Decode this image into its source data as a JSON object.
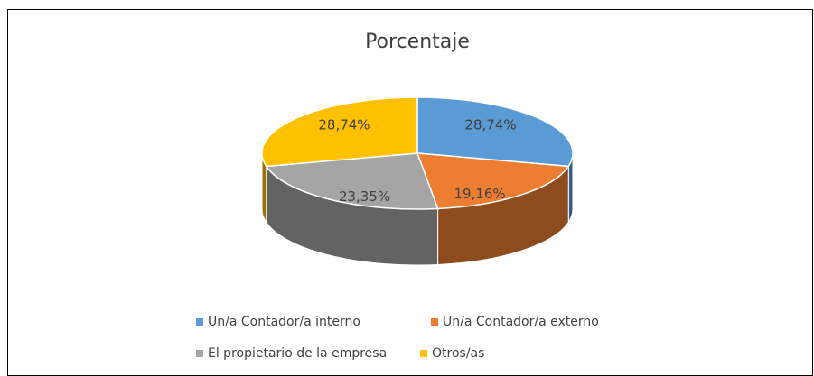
{
  "chart_data": {
    "type": "pie3d",
    "title": "Porcentaje",
    "categories": [
      "Un/a Contador/a interno",
      "Un/a Contador/a externo",
      "El propietario de la empresa",
      "Otros/as"
    ],
    "values": [
      28.74,
      19.16,
      23.35,
      28.74
    ],
    "value_labels": [
      "28,74%",
      "19,16%",
      "23,35%",
      "28,74%"
    ],
    "colors": [
      "#5b9bd5",
      "#ed7d31",
      "#a5a5a5",
      "#ffc000"
    ],
    "legend": "bottom"
  }
}
